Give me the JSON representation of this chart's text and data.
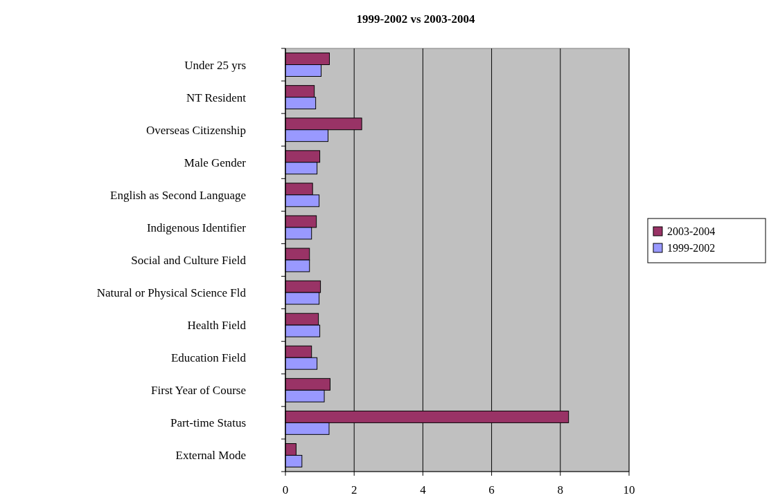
{
  "chart_data": {
    "type": "bar",
    "orientation": "horizontal",
    "title": "1999-2002 vs 2003-2004",
    "categories": [
      "Under 25 yrs",
      "NT Resident",
      "Overseas Citizenship",
      "Male Gender",
      "English as Second Language",
      "Indigenous Identifier",
      "Social and Culture Field",
      "Natural or Physical Science Fld",
      "Health Field",
      "Education Field",
      "First Year of Course",
      "Part-time Status",
      "External Mode"
    ],
    "series": [
      {
        "name": "2003-2004",
        "color": "#993366",
        "values": [
          1.28,
          0.84,
          2.22,
          1.0,
          0.79,
          0.9,
          0.7,
          1.02,
          0.96,
          0.76,
          1.3,
          8.24,
          0.31
        ]
      },
      {
        "name": "1999-2002",
        "color": "#9999ff",
        "values": [
          1.04,
          0.88,
          1.24,
          0.92,
          0.98,
          0.76,
          0.7,
          0.98,
          1.0,
          0.92,
          1.13,
          1.27,
          0.48
        ]
      }
    ],
    "xlim": [
      0,
      10
    ],
    "xticks": [
      0,
      2,
      4,
      6,
      8,
      10
    ],
    "grid": "x",
    "legend": "right"
  }
}
